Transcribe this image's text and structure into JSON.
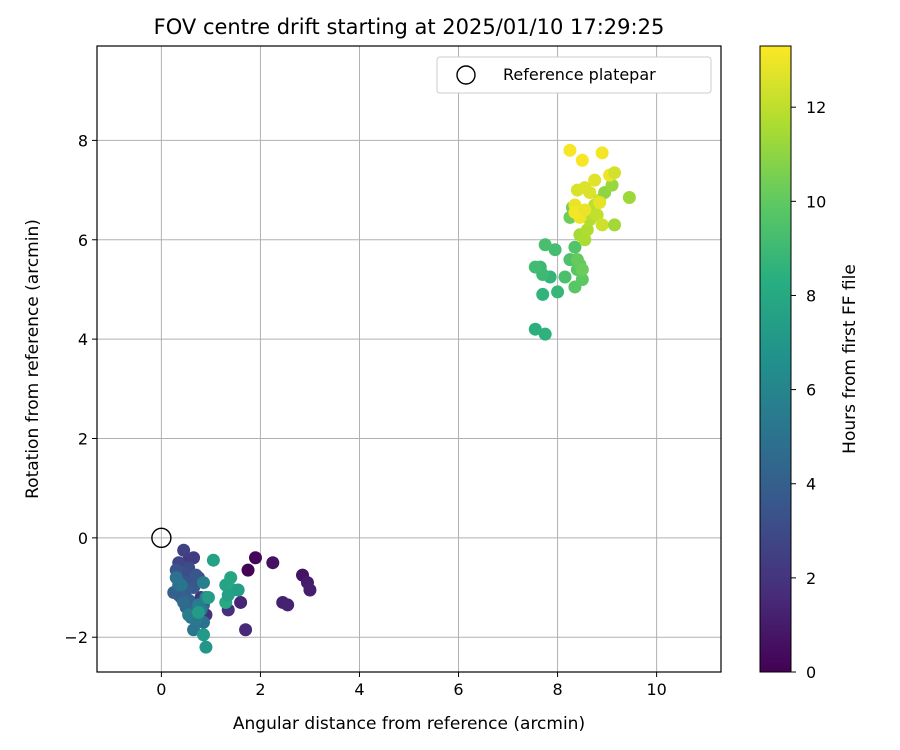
{
  "chart_data": {
    "type": "scatter",
    "title": "FOV centre drift starting at 2025/01/10 17:29:25",
    "xlabel": "Angular distance from reference (arcmin)",
    "ylabel": "Rotation from reference (arcmin)",
    "xlim": [
      -1.3,
      11.3
    ],
    "ylim": [
      -2.7,
      9.9
    ],
    "x_ticks": [
      0,
      2,
      4,
      6,
      8,
      10
    ],
    "y_ticks": [
      -2,
      0,
      2,
      4,
      6,
      8
    ],
    "x_tick_labels": [
      "0",
      "2",
      "4",
      "6",
      "8",
      "10"
    ],
    "y_tick_labels": [
      "−2",
      "0",
      "2",
      "4",
      "6",
      "8"
    ],
    "grid": true,
    "legend": {
      "placement": "top-right",
      "entries": [
        {
          "label": "Reference platepar",
          "marker": "open-circle",
          "color": "#000000"
        }
      ]
    },
    "reference_point": {
      "x": 0,
      "y": 0
    },
    "colorbar": {
      "label": "Hours from first FF file",
      "colormap": "viridis",
      "range": [
        0,
        13.3
      ],
      "ticks": [
        0,
        2,
        4,
        6,
        8,
        10,
        12
      ],
      "tick_labels": [
        "0",
        "2",
        "4",
        "6",
        "8",
        "10",
        "12"
      ]
    },
    "series": [
      {
        "x": [
          1.75,
          1.9,
          2.25,
          2.85,
          2.95,
          3.0,
          2.45,
          2.55,
          1.6,
          1.7,
          1.35,
          0.9,
          0.8,
          0.55,
          0.65,
          0.45,
          0.35,
          0.55,
          0.75,
          0.45,
          0.6,
          0.3,
          0.5,
          0.7,
          0.65,
          0.35,
          0.5,
          0.4,
          0.25,
          0.55,
          0.85,
          0.5,
          0.6,
          0.45,
          0.35,
          0.6,
          0.85,
          0.3,
          0.4,
          0.65,
          0.7,
          0.8,
          0.75,
          0.55,
          0.85,
          0.9,
          1.05,
          1.3,
          1.4,
          1.45,
          1.3,
          1.35,
          1.55,
          0.95,
          0.75,
          0.85,
          0.9,
          7.55,
          7.75,
          7.7,
          7.85,
          7.95,
          8.0,
          7.65,
          7.7,
          7.55,
          7.75,
          8.15,
          8.25,
          8.35,
          8.4,
          8.35,
          8.5,
          8.45,
          8.4,
          8.5,
          8.25,
          8.3,
          8.45,
          8.55,
          8.6,
          8.65,
          8.7,
          8.75,
          8.8,
          8.85,
          8.9,
          8.95,
          9.1,
          9.15,
          9.45,
          8.4,
          8.55,
          8.25,
          8.35,
          8.45,
          8.75,
          8.85,
          8.9,
          9.05,
          9.15,
          8.5,
          8.35,
          8.65,
          8.55
        ],
        "y": [
          -0.65,
          -0.4,
          -0.5,
          -0.75,
          -0.9,
          -1.05,
          -1.3,
          -1.35,
          -1.3,
          -1.85,
          -1.45,
          -1.55,
          -1.2,
          -0.45,
          -0.4,
          -0.25,
          -0.5,
          -0.6,
          -0.8,
          -0.7,
          -0.85,
          -0.65,
          -0.9,
          -0.75,
          -1.0,
          -1.15,
          -1.05,
          -1.2,
          -1.1,
          -1.25,
          -1.35,
          -1.4,
          -1.5,
          -1.3,
          -0.95,
          -1.6,
          -1.7,
          -0.8,
          -0.95,
          -1.85,
          -1.65,
          -1.45,
          -1.35,
          -1.55,
          -0.9,
          -1.2,
          -0.45,
          -0.95,
          -0.8,
          -1.05,
          -1.3,
          -1.15,
          -1.05,
          -1.2,
          -1.5,
          -1.95,
          -2.2,
          4.2,
          4.1,
          4.9,
          5.25,
          5.8,
          4.95,
          5.45,
          5.3,
          5.45,
          5.9,
          5.25,
          5.6,
          5.85,
          5.4,
          5.05,
          5.2,
          5.5,
          5.6,
          5.4,
          6.45,
          6.65,
          6.1,
          6.0,
          6.2,
          6.4,
          6.55,
          6.7,
          6.5,
          6.8,
          6.3,
          6.95,
          7.1,
          6.3,
          6.85,
          7.0,
          7.05,
          7.8,
          6.7,
          6.45,
          7.2,
          6.75,
          7.75,
          7.3,
          7.35,
          7.6,
          6.55,
          6.95,
          6.6
        ],
        "c": [
          0.1,
          0.2,
          0.6,
          0.7,
          1.0,
          1.1,
          1.2,
          1.3,
          1.4,
          1.5,
          1.8,
          1.9,
          2.0,
          2.2,
          2.4,
          2.6,
          2.8,
          3.0,
          3.1,
          3.2,
          3.3,
          3.4,
          3.5,
          3.6,
          3.7,
          3.8,
          3.9,
          4.0,
          4.1,
          4.2,
          4.3,
          4.4,
          4.5,
          4.6,
          4.7,
          4.8,
          4.9,
          5.0,
          5.1,
          5.2,
          5.3,
          5.4,
          5.5,
          5.6,
          5.7,
          5.8,
          7.6,
          7.7,
          7.8,
          7.9,
          8.0,
          7.5,
          7.4,
          7.3,
          7.2,
          7.1,
          7.0,
          8.4,
          8.5,
          8.6,
          8.7,
          9.2,
          8.8,
          8.9,
          9.0,
          9.1,
          9.3,
          9.4,
          9.5,
          9.6,
          9.7,
          9.8,
          9.9,
          10.0,
          10.1,
          10.2,
          10.3,
          10.4,
          11.5,
          11.6,
          11.7,
          11.8,
          11.9,
          12.0,
          12.1,
          12.2,
          12.3,
          11.0,
          11.2,
          11.4,
          11.3,
          12.5,
          12.6,
          13.2,
          12.9,
          13.0,
          12.7,
          12.8,
          13.1,
          13.0,
          12.4,
          13.2,
          13.1,
          12.6,
          12.9
        ]
      }
    ]
  }
}
